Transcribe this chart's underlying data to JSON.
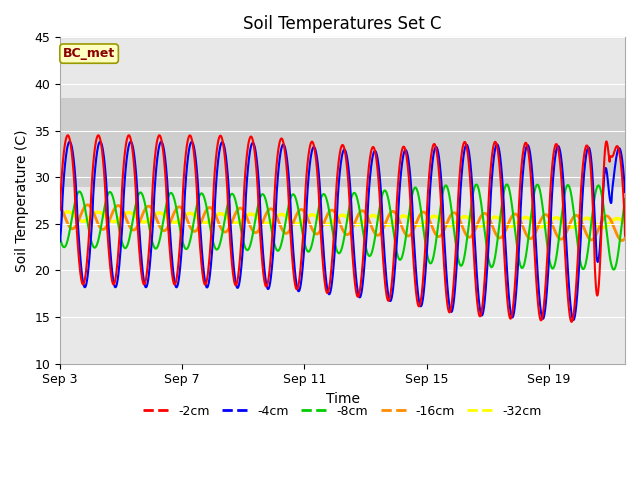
{
  "title": "Soil Temperatures Set C",
  "xlabel": "Time",
  "ylabel": "Soil Temperature (C)",
  "ylim": [
    10,
    45
  ],
  "xlim_days": [
    0,
    18.5
  ],
  "x_ticks_days": [
    0,
    4,
    8,
    12,
    16
  ],
  "x_tick_labels": [
    "Sep 3",
    "Sep 7",
    "Sep 11",
    "Sep 15",
    "Sep 19"
  ],
  "y_ticks": [
    10,
    15,
    20,
    25,
    30,
    35,
    40,
    45
  ],
  "shaded_band_lower": 29.0,
  "shaded_band_upper": 38.5,
  "line_colors": {
    "-2cm": "#ff0000",
    "-4cm": "#0000ff",
    "-8cm": "#00cc00",
    "-16cm": "#ff8c00",
    "-32cm": "#ffff00"
  },
  "line_widths": {
    "-2cm": 1.5,
    "-4cm": 1.5,
    "-8cm": 1.5,
    "-16cm": 2.0,
    "-32cm": 2.5
  },
  "legend_labels": [
    "-2cm",
    "-4cm",
    "-8cm",
    "-16cm",
    "-32cm"
  ],
  "annotation_text": "BC_met",
  "annotation_color": "#8b0000",
  "annotation_bg": "#ffffc0",
  "annotation_edge": "#999900",
  "plot_bg": "#e8e8e8",
  "fig_bg": "#ffffff",
  "title_fontsize": 12,
  "axis_fontsize": 10,
  "tick_fontsize": 9,
  "grid_color": "#ffffff",
  "spine_color": "#aaaaaa"
}
